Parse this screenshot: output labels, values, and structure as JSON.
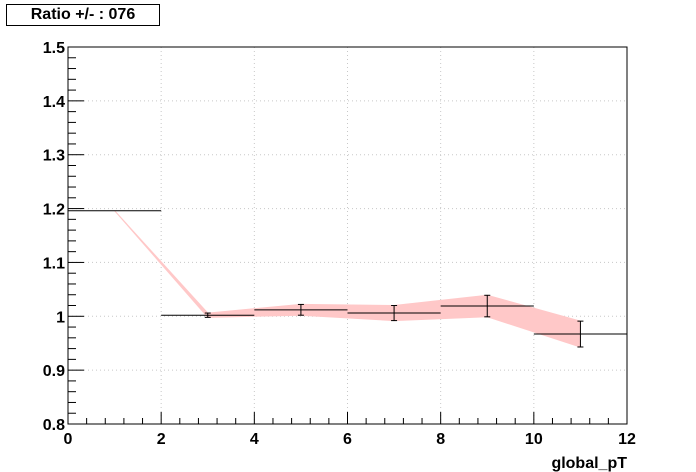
{
  "chart_data": {
    "type": "line",
    "title": "Ratio +/- : 076",
    "xlabel": "global_pT",
    "ylabel": "",
    "xlim": [
      0,
      12
    ],
    "ylim": [
      0.8,
      1.5
    ],
    "x_ticks": [
      "0",
      "2",
      "4",
      "6",
      "8",
      "10",
      "12"
    ],
    "y_ticks": [
      "0.8",
      "0.9",
      "1",
      "1.1",
      "1.2",
      "1.3",
      "1.4",
      "1.5"
    ],
    "grid": true,
    "colors": {
      "band": "#ffc8c8",
      "marker": "#000000",
      "grid": "#c8c8c8"
    },
    "series": [
      {
        "points": [
          {
            "x": 1,
            "xlow": 0,
            "xhigh": 2,
            "y": 1.196,
            "err": 0.0
          },
          {
            "x": 3,
            "xlow": 2,
            "xhigh": 4,
            "y": 1.002,
            "err": 0.004
          },
          {
            "x": 5,
            "xlow": 4,
            "xhigh": 6,
            "y": 1.012,
            "err": 0.01
          },
          {
            "x": 7,
            "xlow": 6,
            "xhigh": 8,
            "y": 1.006,
            "err": 0.014
          },
          {
            "x": 9,
            "xlow": 8,
            "xhigh": 10,
            "y": 1.019,
            "err": 0.02
          },
          {
            "x": 11,
            "xlow": 10,
            "xhigh": 12,
            "y": 0.967,
            "err": 0.024
          }
        ]
      }
    ]
  }
}
